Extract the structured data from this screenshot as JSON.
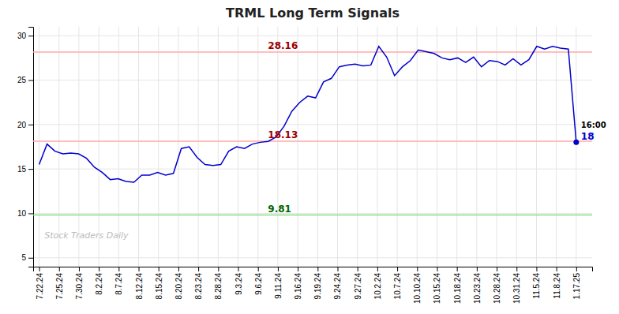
{
  "chart_data": {
    "type": "line",
    "title": "TRML Long Term Signals",
    "x": [
      0,
      0.397059,
      0.794118,
      1.191176,
      1.588235,
      1.985294,
      2.382353,
      2.779412,
      3.176471,
      3.573529,
      3.970588,
      4.367647,
      4.764706,
      5.161765,
      5.558824,
      5.955882,
      6.352941,
      6.75,
      7.147059,
      7.544118,
      7.941176,
      8.338235,
      8.735294,
      9.132353,
      9.529412,
      9.926471,
      10.323529,
      10.720588,
      11.117647,
      11.514706,
      11.911765,
      12.308824,
      12.705882,
      13.102941,
      13.5,
      13.897059,
      14.294118,
      14.691176,
      15.088235,
      15.485294,
      15.882353,
      16.279412,
      16.676471,
      17.073529,
      17.470588,
      17.867647,
      18.264706,
      18.661765,
      19.058824,
      19.455882,
      19.852941,
      20.25,
      20.647059,
      21.044118,
      21.441176,
      21.838235,
      22.235294,
      22.632353,
      23.029412,
      23.426471,
      23.823529,
      24.220588,
      24.617647,
      25.014706,
      25.411765,
      25.808824,
      26.205882,
      26.602941,
      27
    ],
    "values": [
      15.5,
      17.8,
      17.0,
      16.7,
      16.8,
      16.7,
      16.2,
      15.2,
      14.6,
      13.8,
      13.9,
      13.6,
      13.5,
      14.3,
      14.3,
      14.6,
      14.3,
      14.5,
      17.3,
      17.5,
      16.3,
      15.5,
      15.4,
      15.5,
      17.0,
      17.5,
      17.3,
      17.8,
      18.0,
      18.1,
      18.6,
      19.8,
      21.5,
      22.5,
      23.2,
      23.0,
      24.8,
      25.2,
      26.5,
      26.7,
      26.8,
      26.6,
      26.7,
      28.8,
      27.6,
      25.5,
      26.5,
      27.2,
      28.4,
      28.2,
      28.0,
      27.5,
      27.3,
      27.5,
      27.0,
      27.6,
      26.5,
      27.2,
      27.1,
      26.7,
      27.4,
      26.7,
      27.3,
      28.8,
      28.5,
      28.8,
      28.6,
      28.5,
      18.0
    ],
    "color": "#0000cc",
    "xlim": [
      -0.3,
      27.8
    ],
    "xticks": [
      {
        "value": 0,
        "label": "7.22.24"
      },
      {
        "value": 1,
        "label": "7.25.24"
      },
      {
        "value": 2,
        "label": "7.30.24"
      },
      {
        "value": 3,
        "label": "8.2.24"
      },
      {
        "value": 4,
        "label": "8.7.24"
      },
      {
        "value": 5,
        "label": "8.12.24"
      },
      {
        "value": 6,
        "label": "8.15.24"
      },
      {
        "value": 7,
        "label": "8.20.24"
      },
      {
        "value": 8,
        "label": "8.23.24"
      },
      {
        "value": 9,
        "label": "8.28.24"
      },
      {
        "value": 10,
        "label": "9.3.24"
      },
      {
        "value": 11,
        "label": "9.6.24"
      },
      {
        "value": 12,
        "label": "9.11.24"
      },
      {
        "value": 13,
        "label": "9.16.24"
      },
      {
        "value": 14,
        "label": "9.19.24"
      },
      {
        "value": 15,
        "label": "9.24.24"
      },
      {
        "value": 16,
        "label": "9.27.24"
      },
      {
        "value": 17,
        "label": "10.2.24"
      },
      {
        "value": 18,
        "label": "10.7.24"
      },
      {
        "value": 19,
        "label": "10.10.24"
      },
      {
        "value": 20,
        "label": "10.15.24"
      },
      {
        "value": 21,
        "label": "10.18.24"
      },
      {
        "value": 22,
        "label": "10.23.24"
      },
      {
        "value": 23,
        "label": "10.28.24"
      },
      {
        "value": 24,
        "label": "10.31.24"
      },
      {
        "value": 25,
        "label": "11.5.24"
      },
      {
        "value": 26,
        "label": "11.8.24"
      },
      {
        "value": 27,
        "label": "1.17.25"
      }
    ],
    "ylim": [
      4,
      31
    ],
    "yticks": [
      5,
      10,
      15,
      20,
      25,
      30
    ],
    "grid": true,
    "reference_lines": [
      {
        "value": 28.16,
        "label": "28.16",
        "color": "#ffaaaa",
        "label_color": "#990000"
      },
      {
        "value": 18.13,
        "label": "18.13",
        "color": "#ffaaaa",
        "label_color": "#990000"
      },
      {
        "value": 9.81,
        "label": "9.81",
        "color": "#88dd88",
        "label_color": "#006600"
      }
    ],
    "annotations": [
      {
        "text": "16:00"
      },
      {
        "text": "18",
        "color": "#0000cc"
      }
    ],
    "watermark": {
      "text": "Stock Traders Daily",
      "color": "#bbbbbb"
    }
  }
}
